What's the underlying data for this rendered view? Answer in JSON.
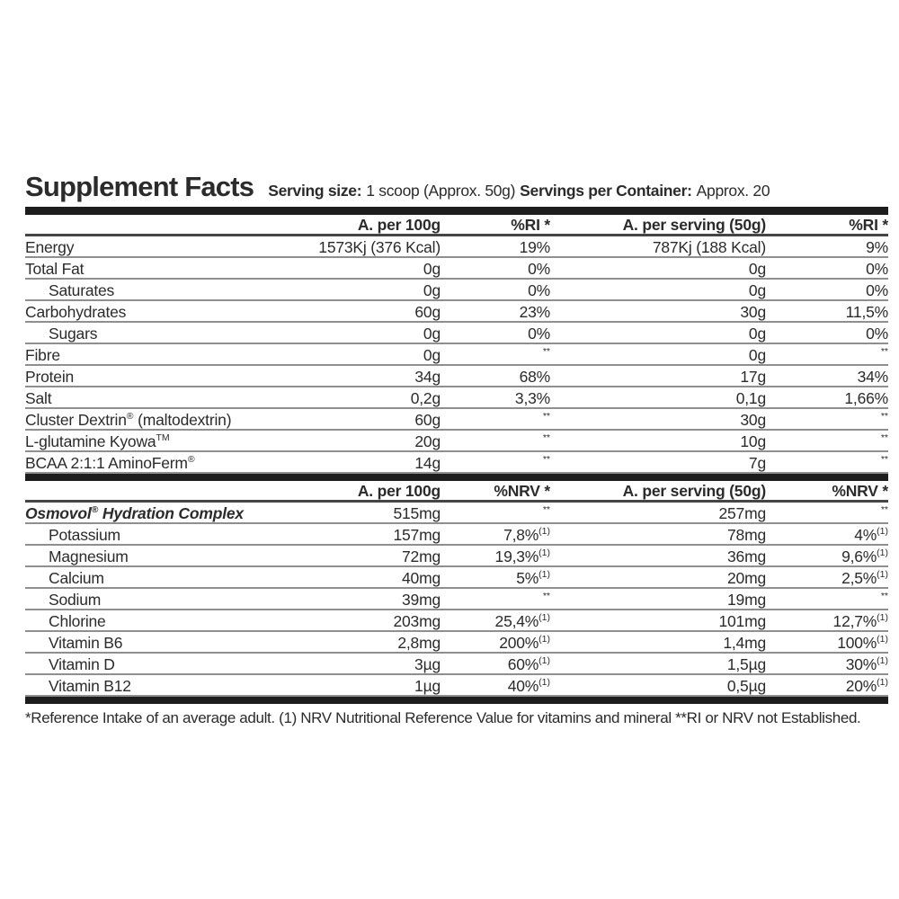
{
  "title": "Supplement Facts",
  "serving_info": {
    "serving_size_label": "Serving size:",
    "serving_size_value": "1 scoop (Approx. 50g)",
    "servings_per_container_label": "Servings per Container:",
    "servings_per_container_value": "Approx. 20"
  },
  "colors": {
    "text": "#2b2b2b",
    "divider_bar": "#1d1d1d",
    "row_line": "#8f8f8f",
    "header_line": "#454545",
    "background": "#ffffff"
  },
  "macros_table": {
    "headers": {
      "per_100g": "A. per 100g",
      "ri_100g": "%RI *",
      "per_serving": "A. per serving (50g)",
      "ri_serving": "%RI *"
    },
    "rows": [
      {
        "label": "Energy",
        "indent": false,
        "per_100g": "1573Kj (376 Kcal)",
        "ri_100g": "19%",
        "per_serving": "787Kj (188 Kcal)",
        "ri_serving": "9%"
      },
      {
        "label": "Total Fat",
        "indent": false,
        "per_100g": "0g",
        "ri_100g": "0%",
        "per_serving": "0g",
        "ri_serving": "0%"
      },
      {
        "label": "Saturates",
        "indent": true,
        "per_100g": "0g",
        "ri_100g": "0%",
        "per_serving": "0g",
        "ri_serving": "0%"
      },
      {
        "label": "Carbohydrates",
        "indent": false,
        "per_100g": "60g",
        "ri_100g": "23%",
        "per_serving": "30g",
        "ri_serving": "11,5%"
      },
      {
        "label": "Sugars",
        "indent": true,
        "per_100g": "0g",
        "ri_100g": "0%",
        "per_serving": "0g",
        "ri_serving": "0%"
      },
      {
        "label": "Fibre",
        "indent": false,
        "per_100g": "0g",
        "ri_100g": "^{**}",
        "per_serving": "0g",
        "ri_serving": "^{**}"
      },
      {
        "label": "Protein",
        "indent": false,
        "per_100g": "34g",
        "ri_100g": "68%",
        "per_serving": "17g",
        "ri_serving": "34%"
      },
      {
        "label": "Salt",
        "indent": false,
        "per_100g": "0,2g",
        "ri_100g": "3,3%",
        "per_serving": "0,1g",
        "ri_serving": "1,66%"
      },
      {
        "label": "Cluster Dextrin^{®} (maltodextrin)",
        "indent": false,
        "per_100g": "60g",
        "ri_100g": "^{**}",
        "per_serving": "30g",
        "ri_serving": "^{**}"
      },
      {
        "label": "L-glutamine Kyowa^{TM}",
        "indent": false,
        "per_100g": "20g",
        "ri_100g": "^{**}",
        "per_serving": "10g",
        "ri_serving": "^{**}"
      },
      {
        "label": "BCAA 2:1:1 AminoFerm^{®}",
        "indent": false,
        "per_100g": "14g",
        "ri_100g": "^{**}",
        "per_serving": "7g",
        "ri_serving": "^{**}"
      }
    ]
  },
  "complex_table": {
    "headers": {
      "per_100g": "A. per 100g",
      "ri_100g": "%NRV *",
      "per_serving": "A. per serving (50g)",
      "ri_serving": "%NRV *"
    },
    "rows": [
      {
        "label": "Osmovol^{®} Hydration Complex",
        "indent": false,
        "brand": true,
        "per_100g": "515mg",
        "ri_100g": "^{**}",
        "per_serving": "257mg",
        "ri_serving": "^{**}"
      },
      {
        "label": "Potassium",
        "indent": true,
        "per_100g": "157mg",
        "ri_100g": "7,8%^{(1)}",
        "per_serving": "78mg",
        "ri_serving": "4%^{(1)}"
      },
      {
        "label": "Magnesium",
        "indent": true,
        "per_100g": "72mg",
        "ri_100g": "19,3%^{(1)}",
        "per_serving": "36mg",
        "ri_serving": "9,6%^{(1)}"
      },
      {
        "label": "Calcium",
        "indent": true,
        "per_100g": "40mg",
        "ri_100g": "5%^{(1)}",
        "per_serving": "20mg",
        "ri_serving": "2,5%^{(1)}"
      },
      {
        "label": "Sodium",
        "indent": true,
        "per_100g": "39mg",
        "ri_100g": "^{**}",
        "per_serving": "19mg",
        "ri_serving": "^{**}"
      },
      {
        "label": "Chlorine",
        "indent": true,
        "per_100g": "203mg",
        "ri_100g": "25,4%^{(1)}",
        "per_serving": "101mg",
        "ri_serving": "12,7%^{(1)}"
      },
      {
        "label": "Vitamin B6",
        "indent": true,
        "per_100g": "2,8mg",
        "ri_100g": "200%^{(1)}",
        "per_serving": "1,4mg",
        "ri_serving": "100%^{(1)}"
      },
      {
        "label": "Vitamin D",
        "indent": true,
        "per_100g": "3µg",
        "ri_100g": "60%^{(1)}",
        "per_serving": "1,5µg",
        "ri_serving": "30%^{(1)}"
      },
      {
        "label": "Vitamin B12",
        "indent": true,
        "per_100g": "1µg",
        "ri_100g": "40%^{(1)}",
        "per_serving": "0,5µg",
        "ri_serving": "20%^{(1)}"
      }
    ]
  },
  "footnote": "*Reference Intake of an average adult. (1) NRV Nutritional Reference Value for vitamins and mineral **RI or NRV not Established."
}
